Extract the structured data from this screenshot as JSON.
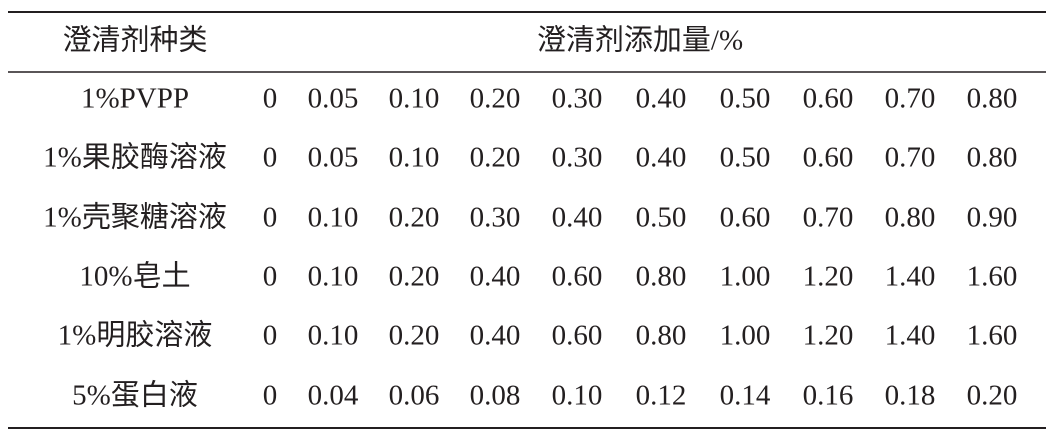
{
  "table": {
    "header": [
      "澄清剂种类",
      "澄清剂添加量/%"
    ],
    "rows": [
      [
        "1%PVPP",
        "0",
        "0.05",
        "0.10",
        "0.20",
        "0.30",
        "0.40",
        "0.50",
        "0.60",
        "0.70",
        "0.80"
      ],
      [
        "1%果胶酶溶液",
        "0",
        "0.05",
        "0.10",
        "0.20",
        "0.30",
        "0.40",
        "0.50",
        "0.60",
        "0.70",
        "0.80"
      ],
      [
        "1%壳聚糖溶液",
        "0",
        "0.10",
        "0.20",
        "0.30",
        "0.40",
        "0.50",
        "0.60",
        "0.70",
        "0.80",
        "0.90"
      ],
      [
        "10%皂土",
        "0",
        "0.10",
        "0.20",
        "0.40",
        "0.60",
        "0.80",
        "1.00",
        "1.20",
        "1.40",
        "1.60"
      ],
      [
        "1%明胶溶液",
        "0",
        "0.10",
        "0.20",
        "0.40",
        "0.60",
        "0.80",
        "1.00",
        "1.20",
        "1.40",
        "1.60"
      ],
      [
        "5%蛋白液",
        "0",
        "0.04",
        "0.06",
        "0.08",
        "0.10",
        "0.12",
        "0.14",
        "0.16",
        "0.18",
        "0.20"
      ]
    ]
  }
}
